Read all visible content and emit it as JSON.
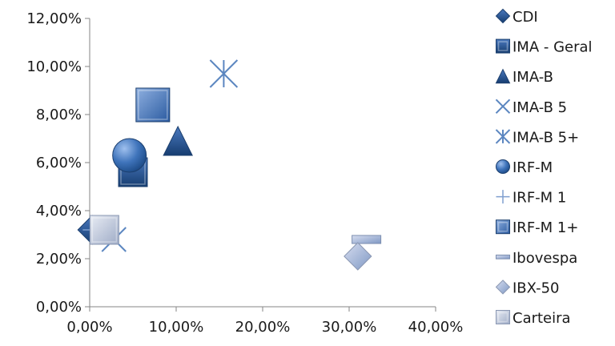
{
  "chart_data": {
    "type": "scatter",
    "title": "",
    "xlabel": "",
    "ylabel": "",
    "xlim": [
      0,
      40
    ],
    "ylim": [
      0,
      12
    ],
    "x_ticks": [
      "0,00%",
      "10,00%",
      "20,00%",
      "30,00%",
      "40,00%"
    ],
    "y_ticks": [
      "0,00%",
      "2,00%",
      "4,00%",
      "6,00%",
      "8,00%",
      "10,00%",
      "12,00%"
    ],
    "grid": false,
    "legend_position": "right",
    "series": [
      {
        "name": "CDI",
        "marker": "diamond",
        "color": "#1f4e8c",
        "points": [
          {
            "x": 0.3,
            "y": 3.2
          }
        ]
      },
      {
        "name": "IMA - Geral",
        "marker": "square",
        "color": "#2f5f9e",
        "points": [
          {
            "x": 5.0,
            "y": 5.6
          }
        ]
      },
      {
        "name": "IMA-B",
        "marker": "triangle",
        "color": "#2a5a97",
        "points": [
          {
            "x": 10.2,
            "y": 6.9
          }
        ]
      },
      {
        "name": "IMA-B 5",
        "marker": "x",
        "color": "#5b86c0",
        "points": [
          {
            "x": 2.8,
            "y": 2.8
          }
        ]
      },
      {
        "name": "IMA-B 5+",
        "marker": "star",
        "color": "#5b86c0",
        "points": [
          {
            "x": 15.5,
            "y": 9.7
          }
        ]
      },
      {
        "name": "IRF-M",
        "marker": "circle",
        "color": "#3a6fb5",
        "points": [
          {
            "x": 4.6,
            "y": 6.3
          }
        ]
      },
      {
        "name": "IRF-M 1",
        "marker": "plus",
        "color": "#7f9fcf",
        "points": [
          {
            "x": 0.4,
            "y": 3.2
          }
        ]
      },
      {
        "name": "IRF-M 1+",
        "marker": "square",
        "color": "#6d8fc5",
        "points": [
          {
            "x": 7.3,
            "y": 8.4
          }
        ]
      },
      {
        "name": "Ibovespa",
        "marker": "dash",
        "color": "#8fa6c8",
        "points": [
          {
            "x": 32.0,
            "y": 2.8
          }
        ]
      },
      {
        "name": "IBX-50",
        "marker": "diamond",
        "color": "#aab6ce",
        "points": [
          {
            "x": 31.0,
            "y": 2.1
          }
        ]
      },
      {
        "name": "Carteira",
        "marker": "square",
        "color": "#b4bfd4",
        "points": [
          {
            "x": 1.7,
            "y": 3.2
          }
        ]
      }
    ]
  }
}
